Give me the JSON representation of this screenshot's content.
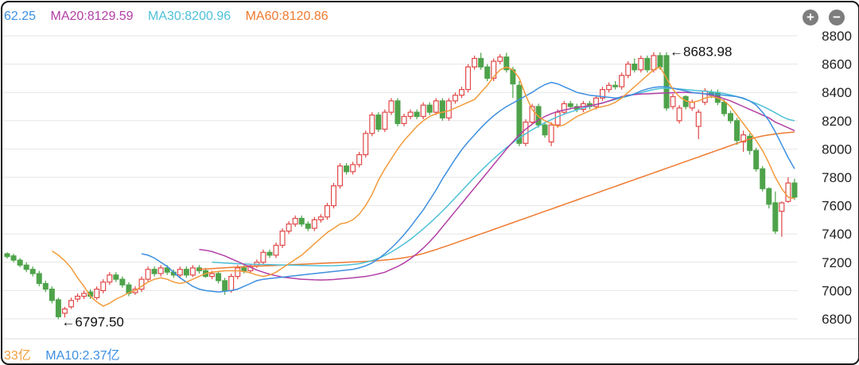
{
  "legend_top": [
    {
      "text": "62.25",
      "color": "#3d8fe0"
    },
    {
      "text": "MA20:8129.59",
      "color": "#b23fa6"
    },
    {
      "text": "MA30:8200.96",
      "color": "#4ec0d8"
    },
    {
      "text": "MA60:8120.86",
      "color": "#ef7a30"
    }
  ],
  "legend_bottom": [
    {
      "text": "33亿",
      "color": "#f0a040"
    },
    {
      "text": "MA10:2.37亿",
      "color": "#3d8fe0"
    }
  ],
  "zoom": {
    "in_label": "+",
    "out_label": "−"
  },
  "chart_data": {
    "type": "candlestick",
    "y_axis": {
      "min": 6700,
      "max": 8850,
      "ticks": [
        6800,
        7000,
        7200,
        7400,
        7600,
        7800,
        8000,
        8200,
        8400,
        8600,
        8800
      ],
      "position": "right"
    },
    "grid": true,
    "colors": {
      "up": "#e04848",
      "down": "#4ea34a",
      "ma5": "#f29a3a",
      "ma10": "#3d8fe0",
      "ma20": "#b23fa6",
      "ma30": "#4ec0d8",
      "ma60": "#ef7a30"
    },
    "annotations": [
      {
        "text": "←8683.98",
        "candle": 103,
        "value": 8683.98,
        "side": "above"
      },
      {
        "text": "←6797.50",
        "candle": 8,
        "value": 6797.5,
        "side": "below"
      }
    ],
    "candles": [
      [
        7260,
        7240,
        7270,
        7225
      ],
      [
        7245,
        7215,
        7260,
        7200
      ],
      [
        7215,
        7180,
        7230,
        7165
      ],
      [
        7180,
        7150,
        7200,
        7130
      ],
      [
        7150,
        7120,
        7170,
        7100
      ],
      [
        7120,
        7050,
        7140,
        7030
      ],
      [
        7050,
        7010,
        7070,
        6990
      ],
      [
        7010,
        6930,
        7030,
        6910
      ],
      [
        6935,
        6815,
        6950,
        6797.5
      ],
      [
        6840,
        6870,
        6885,
        6810
      ],
      [
        6885,
        6930,
        6950,
        6870
      ],
      [
        6940,
        6960,
        6980,
        6920
      ],
      [
        6960,
        6980,
        7000,
        6940
      ],
      [
        6990,
        6960,
        7010,
        6940
      ],
      [
        6950,
        7010,
        7030,
        6935
      ],
      [
        7000,
        7060,
        7080,
        6980
      ],
      [
        7060,
        7110,
        7130,
        7040
      ],
      [
        7110,
        7080,
        7130,
        7060
      ],
      [
        7080,
        7040,
        7100,
        7020
      ],
      [
        7040,
        6980,
        7060,
        6960
      ],
      [
        6985,
        7010,
        7030,
        6970
      ],
      [
        7010,
        7080,
        7100,
        6990
      ],
      [
        7080,
        7150,
        7170,
        7060
      ],
      [
        7150,
        7120,
        7170,
        7100
      ],
      [
        7120,
        7160,
        7180,
        7100
      ],
      [
        7160,
        7130,
        7180,
        7110
      ],
      [
        7130,
        7110,
        7150,
        7090
      ],
      [
        7110,
        7150,
        7170,
        7090
      ],
      [
        7150,
        7110,
        7170,
        7090
      ],
      [
        7110,
        7160,
        7180,
        7095
      ],
      [
        7160,
        7140,
        7180,
        7120
      ],
      [
        7140,
        7100,
        7160,
        7090
      ],
      [
        7100,
        7120,
        7140,
        7080
      ],
      [
        7120,
        7070,
        7140,
        7050
      ],
      [
        7070,
        7000,
        7090,
        6970
      ],
      [
        7000,
        7100,
        7120,
        6985
      ],
      [
        7100,
        7160,
        7180,
        7080
      ],
      [
        7160,
        7140,
        7180,
        7120
      ],
      [
        7140,
        7175,
        7190,
        7120
      ],
      [
        7175,
        7200,
        7220,
        7160
      ],
      [
        7200,
        7270,
        7290,
        7185
      ],
      [
        7270,
        7250,
        7290,
        7230
      ],
      [
        7250,
        7320,
        7340,
        7230
      ],
      [
        7320,
        7420,
        7440,
        7300
      ],
      [
        7420,
        7470,
        7490,
        7400
      ],
      [
        7470,
        7510,
        7530,
        7450
      ],
      [
        7510,
        7470,
        7530,
        7450
      ],
      [
        7470,
        7440,
        7490,
        7420
      ],
      [
        7440,
        7500,
        7520,
        7420
      ],
      [
        7500,
        7520,
        7540,
        7480
      ],
      [
        7520,
        7600,
        7620,
        7500
      ],
      [
        7600,
        7740,
        7760,
        7580
      ],
      [
        7740,
        7880,
        7900,
        7720
      ],
      [
        7880,
        7840,
        7900,
        7820
      ],
      [
        7840,
        7890,
        7910,
        7820
      ],
      [
        7890,
        7960,
        7980,
        7870
      ],
      [
        7960,
        8110,
        8130,
        7940
      ],
      [
        8110,
        8240,
        8260,
        8090
      ],
      [
        8240,
        8140,
        8260,
        8120
      ],
      [
        8140,
        8260,
        8280,
        8120
      ],
      [
        8260,
        8340,
        8360,
        8240
      ],
      [
        8340,
        8180,
        8360,
        8160
      ],
      [
        8180,
        8230,
        8250,
        8160
      ],
      [
        8230,
        8260,
        8280,
        8210
      ],
      [
        8260,
        8230,
        8280,
        8210
      ],
      [
        8230,
        8310,
        8330,
        8210
      ],
      [
        8310,
        8260,
        8330,
        8240
      ],
      [
        8260,
        8340,
        8360,
        8240
      ],
      [
        8340,
        8220,
        8360,
        8200
      ],
      [
        8220,
        8340,
        8360,
        8200
      ],
      [
        8340,
        8380,
        8400,
        8320
      ],
      [
        8380,
        8420,
        8440,
        8360
      ],
      [
        8420,
        8580,
        8600,
        8400
      ],
      [
        8580,
        8640,
        8660,
        8560
      ],
      [
        8640,
        8580,
        8680,
        8560
      ],
      [
        8580,
        8500,
        8600,
        8480
      ],
      [
        8500,
        8620,
        8640,
        8480
      ],
      [
        8620,
        8650,
        8670,
        8600
      ],
      [
        8650,
        8560,
        8680,
        8540
      ],
      [
        8560,
        8460,
        8580,
        8360
      ],
      [
        8450,
        8040,
        8480,
        8020
      ],
      [
        8040,
        8190,
        8210,
        8020
      ],
      [
        8190,
        8300,
        8320,
        8170
      ],
      [
        8300,
        8170,
        8320,
        8150
      ],
      [
        8170,
        8100,
        8190,
        8080
      ],
      [
        8050,
        8170,
        8190,
        8020
      ],
      [
        8170,
        8260,
        8280,
        8150
      ],
      [
        8260,
        8320,
        8340,
        8240
      ],
      [
        8320,
        8300,
        8340,
        8280
      ],
      [
        8300,
        8280,
        8320,
        8260
      ],
      [
        8280,
        8320,
        8340,
        8260
      ],
      [
        8320,
        8300,
        8340,
        8280
      ],
      [
        8300,
        8360,
        8380,
        8280
      ],
      [
        8360,
        8420,
        8440,
        8340
      ],
      [
        8420,
        8450,
        8470,
        8400
      ],
      [
        8450,
        8440,
        8480,
        8420
      ],
      [
        8440,
        8520,
        8540,
        8420
      ],
      [
        8520,
        8600,
        8620,
        8500
      ],
      [
        8600,
        8560,
        8640,
        8540
      ],
      [
        8560,
        8640,
        8660,
        8540
      ],
      [
        8640,
        8560,
        8660,
        8540
      ],
      [
        8560,
        8660,
        8683.98,
        8540
      ],
      [
        8660,
        8580,
        8683.98,
        8560
      ],
      [
        8660,
        8290,
        8683.98,
        8270
      ],
      [
        8300,
        8370,
        8390,
        8280
      ],
      [
        8200,
        8290,
        8310,
        8180
      ],
      [
        8370,
        8300,
        8380,
        8280
      ],
      [
        8290,
        8330,
        8350,
        8270
      ],
      [
        8160,
        8260,
        8280,
        8070
      ],
      [
        8330,
        8410,
        8430,
        8310
      ],
      [
        8400,
        8380,
        8420,
        8360
      ],
      [
        8400,
        8330,
        8420,
        8310
      ],
      [
        8330,
        8250,
        8350,
        8230
      ],
      [
        8250,
        8200,
        8270,
        8180
      ],
      [
        8200,
        8060,
        8220,
        8030
      ],
      [
        8050,
        8100,
        8130,
        7980
      ],
      [
        8090,
        7990,
        8110,
        7960
      ],
      [
        7990,
        7860,
        8010,
        7840
      ],
      [
        7860,
        7720,
        7880,
        7700
      ],
      [
        7720,
        7610,
        7730,
        7580
      ],
      [
        7620,
        7420,
        7700,
        7400
      ],
      [
        7560,
        7620,
        7630,
        7380
      ],
      [
        7630,
        7760,
        7800,
        7620
      ],
      [
        7760,
        7660,
        7790,
        7640
      ]
    ],
    "ma5": [
      7280,
      7250,
      7210,
      7160,
      7090,
      7030,
      6960,
      6920,
      6890,
      6910,
      6940,
      6960,
      6985,
      7000,
      7030,
      7060,
      7080,
      7090,
      7080,
      7060,
      7050,
      7060,
      7080,
      7100,
      7120,
      7130,
      7135,
      7140,
      7140,
      7140,
      7135,
      7125,
      7110,
      7100,
      7110,
      7130,
      7160,
      7190,
      7220,
      7250,
      7290,
      7330,
      7370,
      7410,
      7440,
      7470,
      7480,
      7500,
      7540,
      7600,
      7680,
      7780,
      7860,
      7930,
      8000,
      8060,
      8110,
      8160,
      8200,
      8230,
      8250,
      8260,
      8270,
      8290,
      8310,
      8330,
      8350,
      8400,
      8450,
      8510,
      8560,
      8580,
      8560,
      8500,
      8380,
      8280,
      8230,
      8200,
      8180,
      8160,
      8170,
      8200,
      8230,
      8250,
      8270,
      8290,
      8300,
      8310,
      8330,
      8360,
      8400,
      8440,
      8480,
      8520,
      8560,
      8580,
      8500,
      8420,
      8370,
      8340,
      8330,
      8340,
      8360,
      8370,
      8360,
      8340,
      8300,
      8240,
      8180,
      8120,
      8060,
      7990,
      7900,
      7800,
      7720,
      7660,
      7650
    ],
    "ma10": [
      7260,
      7250,
      7230,
      7200,
      7170,
      7130,
      7090,
      7060,
      7030,
      7010,
      7000,
      6995,
      6990,
      6995,
      7000,
      7010,
      7030,
      7050,
      7070,
      7080,
      7085,
      7090,
      7095,
      7100,
      7105,
      7110,
      7115,
      7120,
      7125,
      7130,
      7135,
      7140,
      7145,
      7150,
      7160,
      7175,
      7195,
      7225,
      7260,
      7300,
      7345,
      7395,
      7450,
      7510,
      7570,
      7640,
      7710,
      7790,
      7860,
      7930,
      7995,
      8050,
      8100,
      8150,
      8195,
      8235,
      8270,
      8300,
      8325,
      8350,
      8375,
      8400,
      8430,
      8455,
      8470,
      8460,
      8440,
      8420,
      8400,
      8390,
      8380,
      8375,
      8370,
      8365,
      8360,
      8365,
      8375,
      8390,
      8410,
      8425,
      8435,
      8440,
      8440,
      8430,
      8420,
      8410,
      8400,
      8395,
      8390,
      8390,
      8385,
      8380,
      8375,
      8370,
      8360,
      8340,
      8310,
      8260,
      8200,
      8120,
      8030,
      7940,
      7860
    ],
    "ma20": [
      7290,
      7285,
      7275,
      7260,
      7245,
      7225,
      7205,
      7185,
      7165,
      7145,
      7130,
      7115,
      7105,
      7095,
      7090,
      7085,
      7080,
      7078,
      7076,
      7075,
      7076,
      7078,
      7082,
      7086,
      7090,
      7095,
      7100,
      7108,
      7118,
      7130,
      7150,
      7170,
      7195,
      7225,
      7260,
      7300,
      7345,
      7395,
      7450,
      7505,
      7560,
      7615,
      7670,
      7725,
      7780,
      7835,
      7890,
      7945,
      8000,
      8050,
      8100,
      8140,
      8175,
      8205,
      8230,
      8250,
      8265,
      8275,
      8285,
      8295,
      8300,
      8305,
      8315,
      8325,
      8340,
      8355,
      8370,
      8380,
      8385,
      8388,
      8390,
      8392,
      8394,
      8396,
      8398,
      8400,
      8400,
      8398,
      8395,
      8390,
      8380,
      8370,
      8355,
      8340,
      8320,
      8300,
      8280,
      8260,
      8240,
      8220,
      8190,
      8170,
      8150,
      8130
    ],
    "ma30": [
      7200,
      7198,
      7195,
      7192,
      7190,
      7188,
      7186,
      7185,
      7184,
      7183,
      7182,
      7181,
      7180,
      7179,
      7178,
      7177,
      7176,
      7175,
      7175,
      7176,
      7178,
      7181,
      7185,
      7190,
      7200,
      7212,
      7228,
      7248,
      7272,
      7300,
      7330,
      7362,
      7398,
      7436,
      7476,
      7518,
      7562,
      7608,
      7656,
      7704,
      7752,
      7800,
      7846,
      7890,
      7932,
      7972,
      8010,
      8045,
      8078,
      8108,
      8136,
      8162,
      8186,
      8208,
      8228,
      8246,
      8262,
      8276,
      8290,
      8302,
      8314,
      8326,
      8338,
      8350,
      8362,
      8374,
      8386,
      8398,
      8410,
      8420,
      8428,
      8430,
      8428,
      8424,
      8420,
      8416,
      8412,
      8408,
      8404,
      8400,
      8392,
      8382,
      8370,
      8356,
      8340,
      8322,
      8302,
      8280,
      8256,
      8230,
      8210,
      8200
    ],
    "ma60": [
      7150,
      7152,
      7155,
      7158,
      7161,
      7164,
      7166,
      7168,
      7170,
      7172,
      7174,
      7176,
      7178,
      7180,
      7182,
      7184,
      7186,
      7188,
      7190,
      7192,
      7194,
      7196,
      7198,
      7200,
      7202,
      7204,
      7206,
      7209,
      7212,
      7216,
      7220,
      7226,
      7232,
      7240,
      7250,
      7262,
      7275,
      7290,
      7305,
      7320,
      7336,
      7352,
      7368,
      7384,
      7400,
      7416,
      7432,
      7448,
      7464,
      7480,
      7496,
      7512,
      7528,
      7544,
      7560,
      7576,
      7592,
      7608,
      7624,
      7640,
      7656,
      7672,
      7688,
      7704,
      7720,
      7736,
      7752,
      7768,
      7784,
      7800,
      7816,
      7832,
      7848,
      7864,
      7880,
      7896,
      7912,
      7928,
      7944,
      7960,
      7976,
      7992,
      8008,
      8024,
      8040,
      8056,
      8070,
      8082,
      8092,
      8100,
      8106,
      8112,
      8116,
      8120
    ]
  }
}
